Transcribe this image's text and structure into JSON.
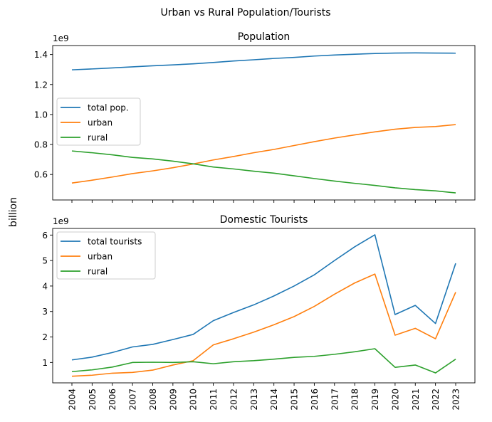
{
  "figure": {
    "suptitle": "Urban vs Rural Population/Tourists",
    "shared_ylabel": "billion"
  },
  "colors": {
    "total": "#1f77b4",
    "urban": "#ff7f0e",
    "rural": "#2ca02c"
  },
  "chart_data": [
    {
      "type": "line",
      "title": "Population",
      "offset_label": "1e9",
      "x": [
        2004,
        2005,
        2006,
        2007,
        2008,
        2009,
        2010,
        2011,
        2012,
        2013,
        2014,
        2015,
        2016,
        2017,
        2018,
        2019,
        2020,
        2021,
        2022,
        2023
      ],
      "ylim": [
        0.43,
        1.46
      ],
      "yticks": [
        0.6,
        0.8,
        1.0,
        1.2,
        1.4
      ],
      "ytick_labels": [
        "0.6",
        "0.8",
        "1.0",
        "1.2",
        "1.4"
      ],
      "legend_position": "center-left",
      "series": [
        {
          "name": "total pop.",
          "color_key": "total",
          "values": [
            1.298,
            1.304,
            1.311,
            1.318,
            1.325,
            1.331,
            1.338,
            1.347,
            1.357,
            1.365,
            1.374,
            1.381,
            1.39,
            1.397,
            1.402,
            1.407,
            1.41,
            1.411,
            1.41,
            1.409
          ]
        },
        {
          "name": "urban",
          "color_key": "urban",
          "values": [
            0.543,
            0.562,
            0.583,
            0.606,
            0.624,
            0.645,
            0.67,
            0.697,
            0.72,
            0.745,
            0.767,
            0.793,
            0.819,
            0.843,
            0.864,
            0.884,
            0.902,
            0.914,
            0.92,
            0.933
          ]
        },
        {
          "name": "rural",
          "color_key": "rural",
          "values": [
            0.757,
            0.745,
            0.731,
            0.714,
            0.704,
            0.689,
            0.671,
            0.65,
            0.637,
            0.622,
            0.609,
            0.591,
            0.573,
            0.556,
            0.541,
            0.527,
            0.511,
            0.499,
            0.491,
            0.477
          ]
        }
      ]
    },
    {
      "type": "line",
      "title": "Domestic Tourists",
      "offset_label": "1e9",
      "x": [
        2004,
        2005,
        2006,
        2007,
        2008,
        2009,
        2010,
        2011,
        2012,
        2013,
        2014,
        2015,
        2016,
        2017,
        2018,
        2019,
        2020,
        2021,
        2022,
        2023
      ],
      "xtick_labels": [
        "2004",
        "2005",
        "2006",
        "2007",
        "2008",
        "2009",
        "2010",
        "2011",
        "2012",
        "2013",
        "2014",
        "2015",
        "2016",
        "2017",
        "2018",
        "2019",
        "2020",
        "2021",
        "2022",
        "2023"
      ],
      "ylim": [
        0.2,
        6.26
      ],
      "yticks": [
        1,
        2,
        3,
        4,
        5,
        6
      ],
      "ytick_labels": [
        "1",
        "2",
        "3",
        "4",
        "5",
        "6"
      ],
      "legend_position": "upper-left",
      "series": [
        {
          "name": "total tourists",
          "color_key": "total",
          "values": [
            1.1,
            1.21,
            1.39,
            1.61,
            1.71,
            1.9,
            2.1,
            2.64,
            2.96,
            3.26,
            3.61,
            4.0,
            4.44,
            5.0,
            5.54,
            6.01,
            2.88,
            3.24,
            2.53,
            4.89
          ]
        },
        {
          "name": "urban",
          "color_key": "urban",
          "values": [
            0.46,
            0.5,
            0.58,
            0.61,
            0.7,
            0.9,
            1.07,
            1.69,
            1.93,
            2.19,
            2.48,
            2.8,
            3.2,
            3.68,
            4.12,
            4.47,
            2.07,
            2.34,
            1.93,
            3.76
          ]
        },
        {
          "name": "rural",
          "color_key": "rural",
          "values": [
            0.64,
            0.71,
            0.82,
            1.0,
            1.01,
            1.0,
            1.03,
            0.95,
            1.03,
            1.07,
            1.13,
            1.2,
            1.24,
            1.32,
            1.42,
            1.54,
            0.81,
            0.9,
            0.59,
            1.13
          ]
        }
      ]
    }
  ]
}
